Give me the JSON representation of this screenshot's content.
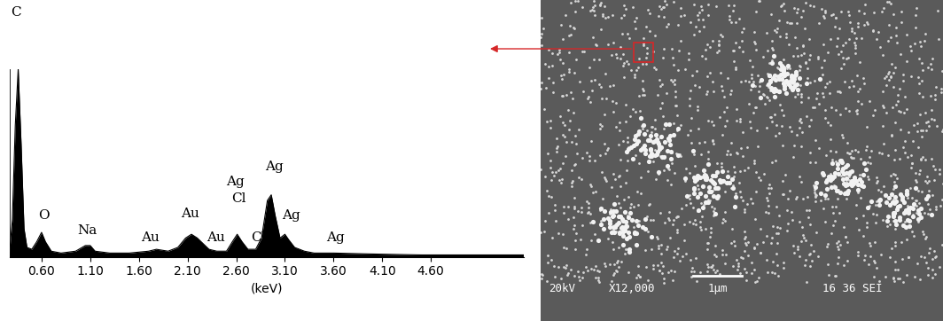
{
  "chart_data": {
    "type": "area",
    "x": [
      0.27,
      0.3,
      0.33,
      0.36,
      0.39,
      0.42,
      0.45,
      0.5,
      0.55,
      0.6,
      0.64,
      0.7,
      0.8,
      0.95,
      1.05,
      1.1,
      1.15,
      1.3,
      1.5,
      1.7,
      1.78,
      1.9,
      2.0,
      2.08,
      2.14,
      2.2,
      2.26,
      2.32,
      2.4,
      2.5,
      2.56,
      2.61,
      2.66,
      2.72,
      2.8,
      2.86,
      2.92,
      2.96,
      3.0,
      3.05,
      3.1,
      3.14,
      3.2,
      3.3,
      3.4,
      3.6,
      4.0,
      4.5,
      5.0,
      5.55
    ],
    "values": [
      2,
      20,
      70,
      100,
      60,
      15,
      5,
      4,
      8,
      13,
      8,
      3,
      2,
      3,
      6,
      6,
      3,
      2,
      2,
      3,
      4,
      3,
      5,
      10,
      12,
      10,
      7,
      4,
      3,
      3,
      8,
      12,
      8,
      4,
      4,
      10,
      30,
      33,
      22,
      10,
      12,
      9,
      5,
      3,
      2,
      2,
      1.5,
      1,
      1,
      1
    ],
    "color": "#000000",
    "xlabel": "(keV)",
    "xlim": [
      0.27,
      5.55
    ],
    "ylim": [
      0,
      100
    ],
    "xticks": [
      {
        "value": 0.6,
        "label": "0.60"
      },
      {
        "value": 1.1,
        "label": "1.10"
      },
      {
        "value": 1.6,
        "label": "1.60"
      },
      {
        "value": 2.1,
        "label": "2.10"
      },
      {
        "value": 2.6,
        "label": "2.60"
      },
      {
        "value": 3.1,
        "label": "3.10"
      },
      {
        "value": 3.6,
        "label": "3.60"
      },
      {
        "value": 4.1,
        "label": "4.10"
      },
      {
        "value": 4.6,
        "label": "4.60"
      }
    ],
    "tick_labels": "x",
    "annotations": [
      {
        "text": "C",
        "x": 0.34,
        "y": 130
      },
      {
        "text": "O",
        "x": 0.62,
        "y": 22
      },
      {
        "text": "Na",
        "x": 1.07,
        "y": 14
      },
      {
        "text": "Au",
        "x": 1.72,
        "y": 10
      },
      {
        "text": "Au",
        "x": 2.13,
        "y": 23
      },
      {
        "text": "Au",
        "x": 2.39,
        "y": 10
      },
      {
        "text": "Ag",
        "x": 2.59,
        "y": 40
      },
      {
        "text": "Cl",
        "x": 2.63,
        "y": 31
      },
      {
        "text": "Cl",
        "x": 2.83,
        "y": 10
      },
      {
        "text": "Ag",
        "x": 2.99,
        "y": 48
      },
      {
        "text": "Ag",
        "x": 3.16,
        "y": 22
      },
      {
        "text": "Ag",
        "x": 3.62,
        "y": 10
      }
    ]
  },
  "sem_image": {
    "texts": [
      "20kV",
      "X12,000",
      "1μm",
      "16 36 SEI"
    ]
  }
}
